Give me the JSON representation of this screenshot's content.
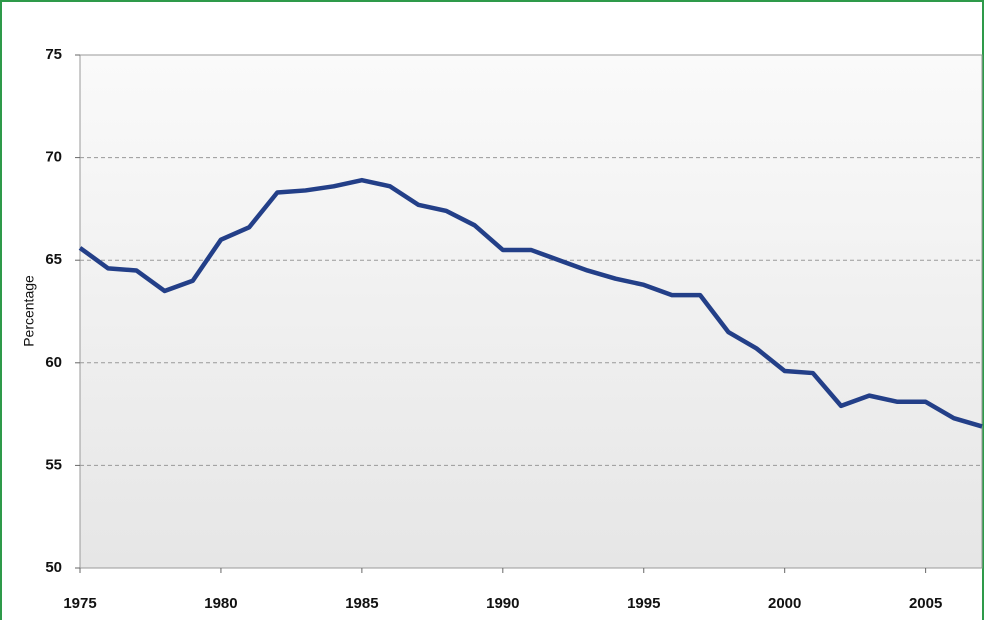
{
  "chart_data": {
    "type": "line",
    "y_label": "Percentage",
    "x": [
      1975,
      1976,
      1977,
      1978,
      1979,
      1980,
      1981,
      1982,
      1983,
      1984,
      1985,
      1986,
      1987,
      1988,
      1989,
      1990,
      1991,
      1992,
      1993,
      1994,
      1995,
      1996,
      1997,
      1998,
      1999,
      2000,
      2001,
      2002,
      2003,
      2004,
      2005,
      2006,
      2007
    ],
    "series": [
      {
        "color": "#233f88",
        "values": [
          65.6,
          64.6,
          64.5,
          63.5,
          64.0,
          66.0,
          66.6,
          68.3,
          68.4,
          68.6,
          68.9,
          68.6,
          67.7,
          67.4,
          66.7,
          65.5,
          65.5,
          65.0,
          64.5,
          64.1,
          63.8,
          63.3,
          63.3,
          61.5,
          60.7,
          59.6,
          59.5,
          57.9,
          58.4,
          58.1,
          58.1,
          57.3,
          56.9
        ]
      }
    ],
    "xlim": [
      1975,
      2007
    ],
    "xticks": [
      1975,
      1980,
      1985,
      1990,
      1995,
      2000,
      2005
    ],
    "ylim": [
      50,
      75
    ],
    "yticks": [
      50,
      55,
      60,
      65,
      70,
      75
    ],
    "grid": true
  }
}
